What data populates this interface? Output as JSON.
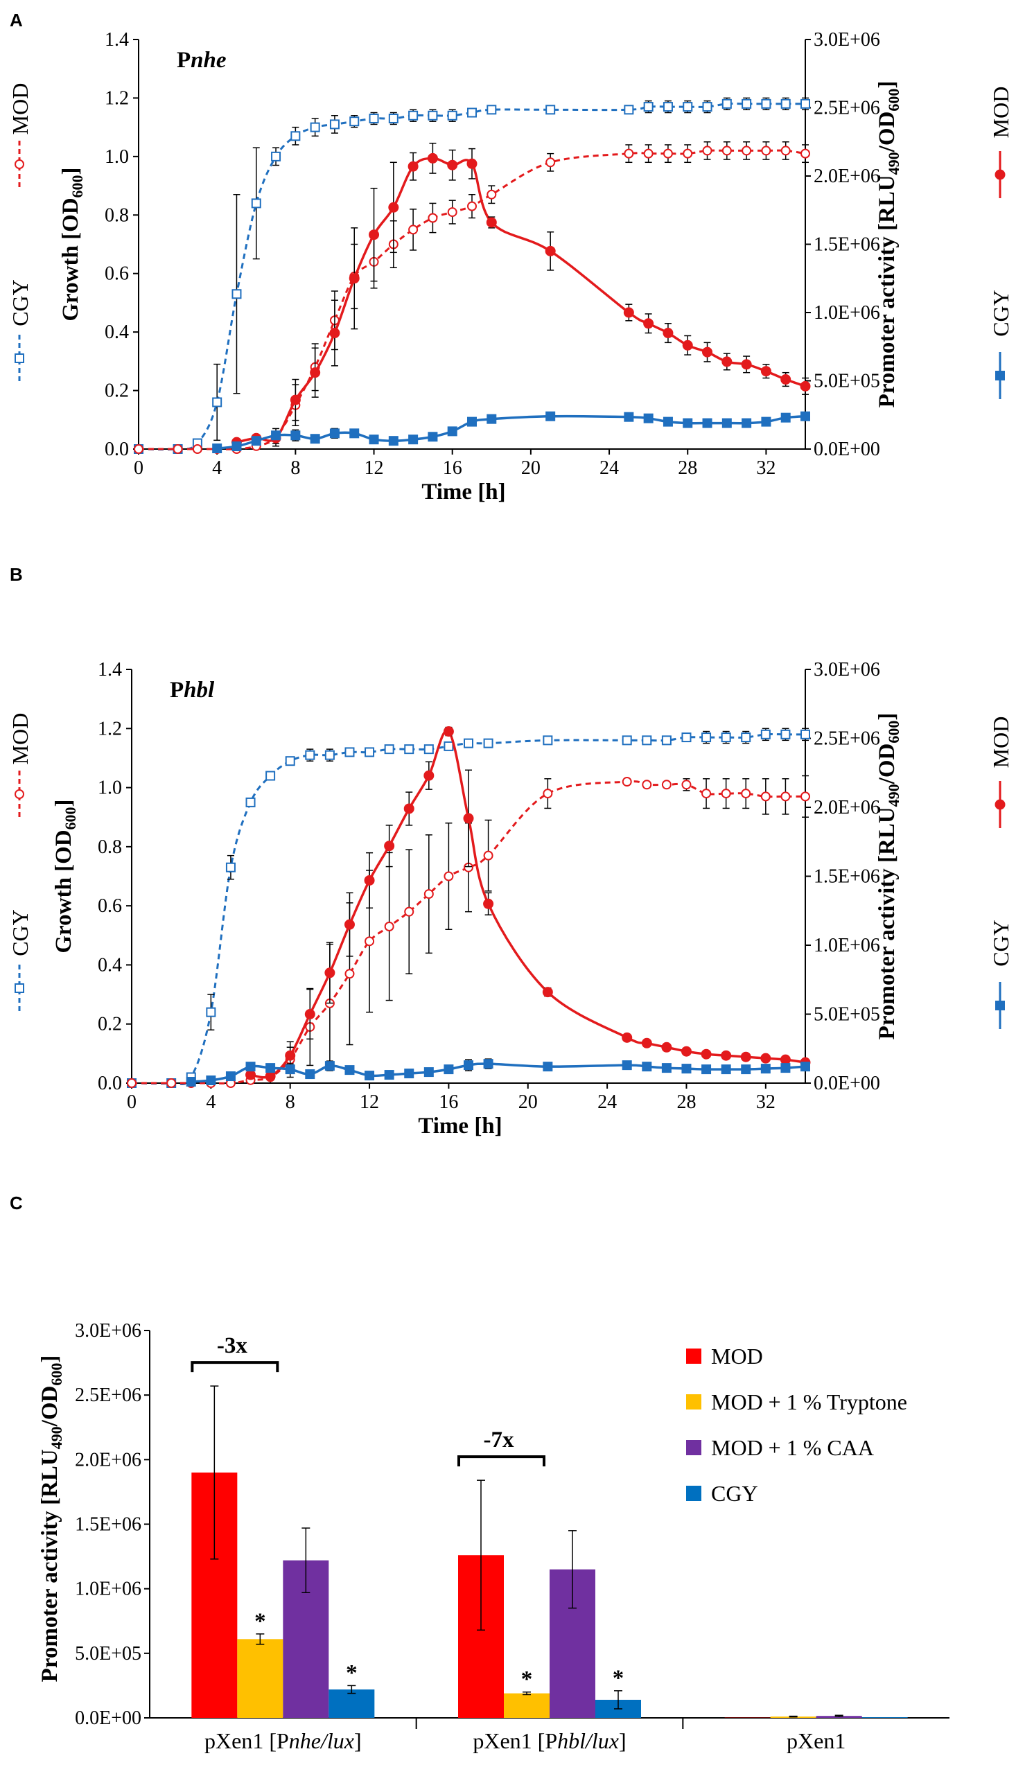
{
  "chart_data": [
    {
      "panel": "A",
      "type": "line",
      "title_prefix": "P",
      "title_italic": "nhe",
      "xlabel": "Time [h]",
      "ylabel_left": "Growth [OD",
      "ylabel_left_sub": "600",
      "ylabel_left_end": "]",
      "ylabel_right": "Promoter activity [RLU",
      "ylabel_right_sub1": "490",
      "ylabel_right_mid": "/OD",
      "ylabel_right_sub2": "600",
      "ylabel_right_end": "]",
      "xlim": [
        0,
        34
      ],
      "xticks": [
        "0",
        "4",
        "8",
        "12",
        "16",
        "20",
        "24",
        "28",
        "32"
      ],
      "ylim_left": [
        0,
        1.4
      ],
      "yticks_left": [
        "0.0",
        "0.2",
        "0.4",
        "0.6",
        "0.8",
        "1.0",
        "1.2",
        "1.4"
      ],
      "ylim_right": [
        0,
        3000000
      ],
      "yticks_right": [
        "0.0E+00",
        "5.0E+05",
        "1.0E+06",
        "1.5E+06",
        "2.0E+06",
        "2.5E+06",
        "3.0E+06"
      ],
      "legend_left": [
        {
          "name": "MOD"
        },
        {
          "name": "CGY"
        }
      ],
      "legend_right": [
        {
          "name": "MOD"
        },
        {
          "name": "CGY"
        }
      ],
      "series": [
        {
          "name": "CGY growth",
          "axis": "left",
          "style": "dashed-open-square",
          "color": "#1f6fbf",
          "x": [
            0,
            2,
            3,
            4,
            5,
            6,
            7,
            8,
            9,
            10,
            11,
            12,
            13,
            14,
            15,
            16,
            17,
            18,
            21,
            25,
            26,
            27,
            28,
            29,
            30,
            31,
            32,
            33,
            34
          ],
          "y": [
            0,
            0,
            0.02,
            0.16,
            0.53,
            0.84,
            1.0,
            1.07,
            1.1,
            1.11,
            1.12,
            1.13,
            1.13,
            1.14,
            1.14,
            1.14,
            1.15,
            1.16,
            1.16,
            1.16,
            1.17,
            1.17,
            1.17,
            1.17,
            1.18,
            1.18,
            1.18,
            1.18,
            1.18
          ],
          "err": [
            0,
            0,
            0.01,
            0.13,
            0.34,
            0.19,
            0.03,
            0.03,
            0.03,
            0.03,
            0.02,
            0.02,
            0.02,
            0.02,
            0.02,
            0.02,
            0.01,
            0.01,
            0.01,
            0.01,
            0.02,
            0.02,
            0.02,
            0.02,
            0.02,
            0.02,
            0.02,
            0.02,
            0.02
          ]
        },
        {
          "name": "MOD growth",
          "axis": "left",
          "style": "dashed-open-circle",
          "color": "#e31a1c",
          "x": [
            0,
            2,
            3,
            4,
            5,
            6,
            7,
            8,
            9,
            10,
            11,
            12,
            13,
            14,
            15,
            16,
            17,
            18,
            21,
            25,
            26,
            27,
            28,
            29,
            30,
            31,
            32,
            33,
            34
          ],
          "y": [
            0,
            0,
            0,
            0,
            0,
            0.01,
            0.04,
            0.15,
            0.28,
            0.44,
            0.59,
            0.64,
            0.7,
            0.75,
            0.79,
            0.81,
            0.83,
            0.87,
            0.98,
            1.01,
            1.01,
            1.01,
            1.01,
            1.02,
            1.02,
            1.02,
            1.02,
            1.02,
            1.01
          ],
          "err": [
            0,
            0,
            0,
            0,
            0,
            0.01,
            0.03,
            0.07,
            0.08,
            0.1,
            0.11,
            0.09,
            0.08,
            0.07,
            0.05,
            0.04,
            0.04,
            0.03,
            0.03,
            0.03,
            0.03,
            0.03,
            0.03,
            0.03,
            0.03,
            0.03,
            0.03,
            0.03,
            0.03
          ]
        },
        {
          "name": "MOD promoter",
          "axis": "right",
          "style": "solid-filled-circle",
          "color": "#e31a1c",
          "x": [
            5,
            6,
            7,
            8,
            9,
            10,
            11,
            12,
            13,
            14,
            15,
            16,
            17,
            18,
            21,
            25,
            26,
            27,
            28,
            29,
            30,
            31,
            32,
            33,
            34
          ],
          "y": [
            50000,
            80000,
            80000,
            360000,
            560000,
            850000,
            1250000,
            1570000,
            1770000,
            2070000,
            2130000,
            2080000,
            2090000,
            1660000,
            1450000,
            1000000,
            920000,
            850000,
            760000,
            710000,
            640000,
            620000,
            570000,
            510000,
            460000
          ],
          "err": [
            10000,
            20000,
            40000,
            150000,
            180000,
            240000,
            370000,
            340000,
            330000,
            100000,
            110000,
            110000,
            110000,
            40000,
            140000,
            60000,
            70000,
            70000,
            70000,
            70000,
            60000,
            60000,
            50000,
            50000,
            60000
          ]
        },
        {
          "name": "CGY promoter",
          "axis": "right",
          "style": "solid-filled-square",
          "color": "#1f6fbf",
          "x": [
            4,
            5,
            6,
            7,
            8,
            9,
            10,
            11,
            12,
            13,
            14,
            15,
            16,
            17,
            18,
            21,
            25,
            26,
            27,
            28,
            29,
            30,
            31,
            32,
            33,
            34
          ],
          "y": [
            5000,
            20000,
            60000,
            100000,
            100000,
            75000,
            115000,
            115000,
            70000,
            60000,
            70000,
            90000,
            130000,
            200000,
            220000,
            240000,
            235000,
            225000,
            200000,
            190000,
            190000,
            190000,
            190000,
            200000,
            230000,
            240000
          ],
          "err": [
            3000,
            10000,
            20000,
            30000,
            40000,
            20000,
            35000,
            30000,
            20000,
            15000,
            20000,
            20000,
            25000,
            25000,
            20000,
            15000,
            30000,
            30000,
            20000,
            20000,
            15000,
            15000,
            15000,
            15000,
            25000,
            30000
          ]
        }
      ]
    },
    {
      "panel": "B",
      "type": "line",
      "title_prefix": "P",
      "title_italic": "hbl",
      "xlabel": "Time [h]",
      "ylabel_left": "Growth [OD",
      "ylabel_left_sub": "600",
      "ylabel_left_end": "]",
      "ylabel_right": "Promoter activity [RLU",
      "ylabel_right_sub1": "490",
      "ylabel_right_mid": "/OD",
      "ylabel_right_sub2": "600",
      "ylabel_right_end": "]",
      "xlim": [
        0,
        34
      ],
      "xticks": [
        "0",
        "4",
        "8",
        "12",
        "16",
        "20",
        "24",
        "28",
        "32"
      ],
      "ylim_left": [
        0,
        1.4
      ],
      "yticks_left": [
        "0.0",
        "0.2",
        "0.4",
        "0.6",
        "0.8",
        "1.0",
        "1.2",
        "1.4"
      ],
      "ylim_right": [
        0,
        3000000
      ],
      "yticks_right": [
        "0.0E+00",
        "5.0E+05",
        "1.0E+06",
        "1.5E+06",
        "2.0E+06",
        "2.5E+06",
        "3.0E+06"
      ],
      "legend_left": [
        {
          "name": "MOD"
        },
        {
          "name": "CGY"
        }
      ],
      "legend_right": [
        {
          "name": "MOD"
        },
        {
          "name": "CGY"
        }
      ],
      "series": [
        {
          "name": "CGY growth",
          "axis": "left",
          "style": "dashed-open-square",
          "color": "#1f6fbf",
          "x": [
            0,
            2,
            3,
            4,
            5,
            6,
            7,
            8,
            9,
            10,
            11,
            12,
            13,
            14,
            15,
            16,
            17,
            18,
            21,
            25,
            26,
            27,
            28,
            29,
            30,
            31,
            32,
            33,
            34
          ],
          "y": [
            0,
            0,
            0.02,
            0.24,
            0.73,
            0.95,
            1.04,
            1.09,
            1.11,
            1.11,
            1.12,
            1.12,
            1.13,
            1.13,
            1.13,
            1.14,
            1.15,
            1.15,
            1.16,
            1.16,
            1.16,
            1.16,
            1.17,
            1.17,
            1.17,
            1.17,
            1.18,
            1.18,
            1.18
          ],
          "err": [
            0,
            0,
            0.01,
            0.06,
            0.04,
            0.01,
            0.01,
            0.01,
            0.02,
            0.02,
            0.01,
            0.01,
            0.01,
            0.01,
            0.01,
            0.01,
            0.01,
            0.01,
            0.01,
            0.01,
            0.01,
            0.01,
            0.01,
            0.02,
            0.02,
            0.02,
            0.02,
            0.02,
            0.02
          ]
        },
        {
          "name": "MOD growth",
          "axis": "left",
          "style": "dashed-open-circle",
          "color": "#e31a1c",
          "x": [
            0,
            2,
            3,
            4,
            5,
            6,
            7,
            8,
            9,
            10,
            11,
            12,
            13,
            14,
            15,
            16,
            17,
            18,
            21,
            25,
            26,
            27,
            28,
            29,
            30,
            31,
            32,
            33,
            34
          ],
          "y": [
            0,
            0,
            0,
            0,
            0,
            0.01,
            0.02,
            0.08,
            0.19,
            0.27,
            0.37,
            0.48,
            0.53,
            0.58,
            0.64,
            0.7,
            0.73,
            0.77,
            0.98,
            1.02,
            1.01,
            1.01,
            1.01,
            0.98,
            0.98,
            0.98,
            0.97,
            0.97,
            0.97
          ],
          "err": [
            0,
            0,
            0,
            0,
            0,
            0.01,
            0.02,
            0.06,
            0.13,
            0.2,
            0.24,
            0.24,
            0.25,
            0.21,
            0.2,
            0.18,
            0.15,
            0.12,
            0.05,
            0.01,
            0.01,
            0.01,
            0.02,
            0.05,
            0.05,
            0.05,
            0.06,
            0.06,
            0.07
          ]
        },
        {
          "name": "MOD promoter",
          "axis": "right",
          "style": "solid-filled-circle",
          "color": "#e31a1c",
          "x": [
            6,
            7,
            8,
            9,
            10,
            11,
            12,
            13,
            14,
            15,
            16,
            17,
            18,
            21,
            25,
            26,
            27,
            28,
            29,
            30,
            31,
            32,
            33,
            34
          ],
          "y": [
            60000,
            50000,
            200000,
            500000,
            800000,
            1150000,
            1470000,
            1720000,
            1990000,
            2230000,
            2550000,
            1920000,
            1300000,
            660000,
            330000,
            290000,
            260000,
            230000,
            210000,
            200000,
            190000,
            180000,
            170000,
            150000
          ],
          "err": [
            20000,
            20000,
            60000,
            180000,
            220000,
            230000,
            200000,
            150000,
            120000,
            100000,
            30000,
            350000,
            80000,
            30000,
            20000,
            20000,
            20000,
            20000,
            20000,
            20000,
            20000,
            20000,
            20000,
            20000
          ]
        },
        {
          "name": "CGY promoter",
          "axis": "right",
          "style": "solid-filled-square",
          "color": "#1f6fbf",
          "x": [
            3,
            4,
            5,
            6,
            7,
            8,
            9,
            10,
            11,
            12,
            13,
            14,
            15,
            16,
            17,
            18,
            21,
            25,
            26,
            27,
            28,
            29,
            30,
            31,
            32,
            33,
            34
          ],
          "y": [
            10000,
            20000,
            50000,
            120000,
            110000,
            100000,
            65000,
            125000,
            95000,
            55000,
            60000,
            70000,
            80000,
            100000,
            130000,
            140000,
            120000,
            130000,
            120000,
            110000,
            105000,
            100000,
            100000,
            100000,
            105000,
            110000,
            120000
          ],
          "err": [
            3000,
            10000,
            15000,
            20000,
            20000,
            30000,
            20000,
            35000,
            20000,
            15000,
            15000,
            20000,
            25000,
            25000,
            40000,
            35000,
            20000,
            15000,
            15000,
            15000,
            15000,
            15000,
            15000,
            15000,
            15000,
            15000,
            20000
          ]
        }
      ]
    },
    {
      "panel": "C",
      "type": "bar",
      "ylabel": "Promoter activity [RLU",
      "ylabel_sub1": "490",
      "ylabel_mid": "/OD",
      "ylabel_sub2": "600",
      "ylabel_end": "]",
      "ylim": [
        0,
        3000000
      ],
      "yticks": [
        "0.0E+00",
        "5.0E+05",
        "1.0E+06",
        "1.5E+06",
        "2.0E+06",
        "2.5E+06",
        "3.0E+06"
      ],
      "groups": [
        {
          "label_pre": "pXen1 [P",
          "label_italic": "nhe/lux",
          "label_post": "]",
          "fold": "-3x"
        },
        {
          "label_pre": "pXen1 [P",
          "label_italic": "hbl/lux",
          "label_post": "]",
          "fold": "-7x"
        },
        {
          "label_pre": "pXen1",
          "label_italic": "",
          "label_post": "",
          "fold": ""
        }
      ],
      "series": [
        {
          "name": "MOD",
          "color": "#ff0000",
          "values": [
            1900000,
            1260000,
            2000
          ],
          "err": [
            670000,
            580000,
            2000
          ],
          "sig": [
            "",
            "",
            ""
          ]
        },
        {
          "name": "MOD + 1 % Tryptone",
          "color": "#ffc000",
          "values": [
            610000,
            190000,
            10000
          ],
          "err": [
            40000,
            10000,
            3000
          ],
          "sig": [
            "*",
            "*",
            ""
          ]
        },
        {
          "name": "MOD + 1 % CAA",
          "color": "#7030a0",
          "values": [
            1220000,
            1150000,
            15000
          ],
          "err": [
            250000,
            300000,
            5000
          ],
          "sig": [
            "",
            "",
            ""
          ]
        },
        {
          "name": "CGY",
          "color": "#0070c0",
          "values": [
            220000,
            140000,
            5000
          ],
          "err": [
            30000,
            70000,
            2000
          ],
          "sig": [
            "*",
            "*",
            ""
          ]
        }
      ]
    }
  ],
  "panel_letters": [
    "A",
    "B",
    "C"
  ]
}
